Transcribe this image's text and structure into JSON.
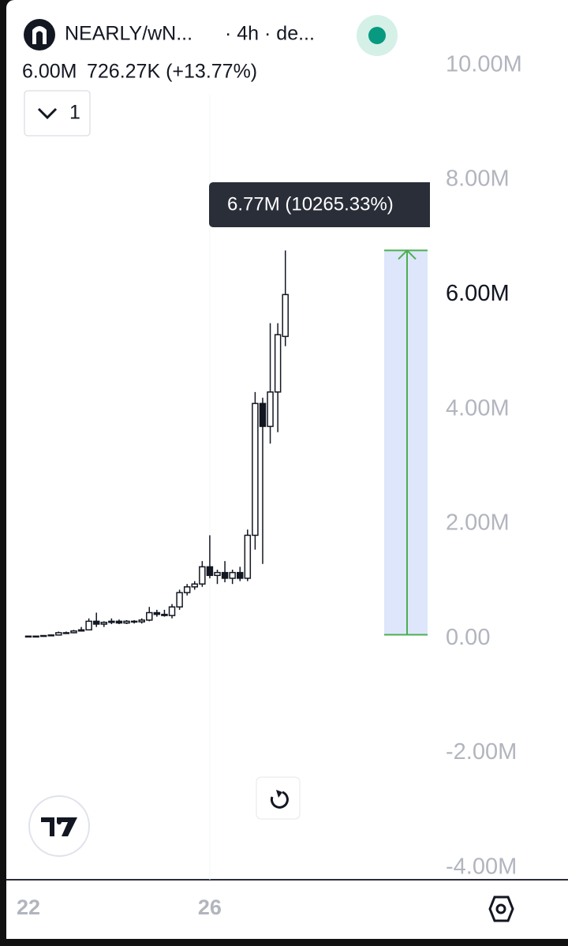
{
  "header": {
    "symbol": "NEARLY/wN...",
    "interval": "· 4h · de...",
    "change": "726.27K (+13.77%)",
    "indicators": "1"
  },
  "chart_data": {
    "type": "candlestick",
    "categories": [
      "22",
      null,
      null,
      null,
      null,
      null,
      null,
      null,
      null,
      null,
      null,
      null,
      null,
      null,
      null,
      null,
      null,
      null,
      null,
      null,
      null,
      null,
      null,
      null,
      "26",
      null,
      null,
      null,
      null,
      null,
      null,
      null,
      null,
      null,
      null
    ],
    "open": [
      0.04,
      0.04,
      0.04,
      0.05,
      0.06,
      0.1,
      0.1,
      0.13,
      0.15,
      0.3,
      0.25,
      0.28,
      0.3,
      0.27,
      0.3,
      0.29,
      0.32,
      0.45,
      0.42,
      0.4,
      0.55,
      0.8,
      0.9,
      0.95,
      1.25,
      1.1,
      1.15,
      1.05,
      1.15,
      1.05,
      1.8,
      4.1,
      3.7,
      4.3,
      5.27
    ],
    "high": [
      0.05,
      0.05,
      0.05,
      0.07,
      0.12,
      0.12,
      0.15,
      0.2,
      0.35,
      0.45,
      0.3,
      0.35,
      0.33,
      0.32,
      0.32,
      0.35,
      0.55,
      0.5,
      0.5,
      0.6,
      0.85,
      0.95,
      1.0,
      1.35,
      1.8,
      1.2,
      1.35,
      1.2,
      1.25,
      1.9,
      4.3,
      4.2,
      5.5,
      5.5,
      6.77
    ],
    "low": [
      0.03,
      0.04,
      0.04,
      0.04,
      0.05,
      0.08,
      0.09,
      0.12,
      0.14,
      0.2,
      0.2,
      0.25,
      0.25,
      0.25,
      0.26,
      0.26,
      0.3,
      0.38,
      0.38,
      0.35,
      0.5,
      0.75,
      0.85,
      0.9,
      1.05,
      0.95,
      0.98,
      0.95,
      1.0,
      1.0,
      1.55,
      1.3,
      3.4,
      3.6,
      5.1
    ],
    "close": [
      0.04,
      0.04,
      0.05,
      0.06,
      0.1,
      0.1,
      0.13,
      0.15,
      0.3,
      0.25,
      0.28,
      0.3,
      0.27,
      0.3,
      0.29,
      0.32,
      0.45,
      0.42,
      0.4,
      0.55,
      0.8,
      0.9,
      0.95,
      1.25,
      1.1,
      1.15,
      1.05,
      1.15,
      1.05,
      1.8,
      4.1,
      3.7,
      4.3,
      5.3,
      6.0
    ],
    "ylim": [
      -4.21,
      11.14
    ],
    "yticks": [
      {
        "value": -4,
        "label": "-4.00M"
      },
      {
        "value": -2,
        "label": "-2.00M"
      },
      {
        "value": 0,
        "label": "0.00"
      },
      {
        "value": 2,
        "label": "2.00M"
      },
      {
        "value": 4,
        "label": "4.00M"
      },
      {
        "value": 6,
        "label": "6.00M"
      },
      {
        "value": 8,
        "label": "8.00M"
      },
      {
        "value": 10,
        "label": "10.00M"
      }
    ],
    "last_price": {
      "value": 6.0,
      "label": "6.00M"
    },
    "measure": {
      "from": 0.065,
      "to": 6.77,
      "label": "6.77M (10265.33%)",
      "color": "#4caf50",
      "fill": "#dde6fb"
    }
  }
}
